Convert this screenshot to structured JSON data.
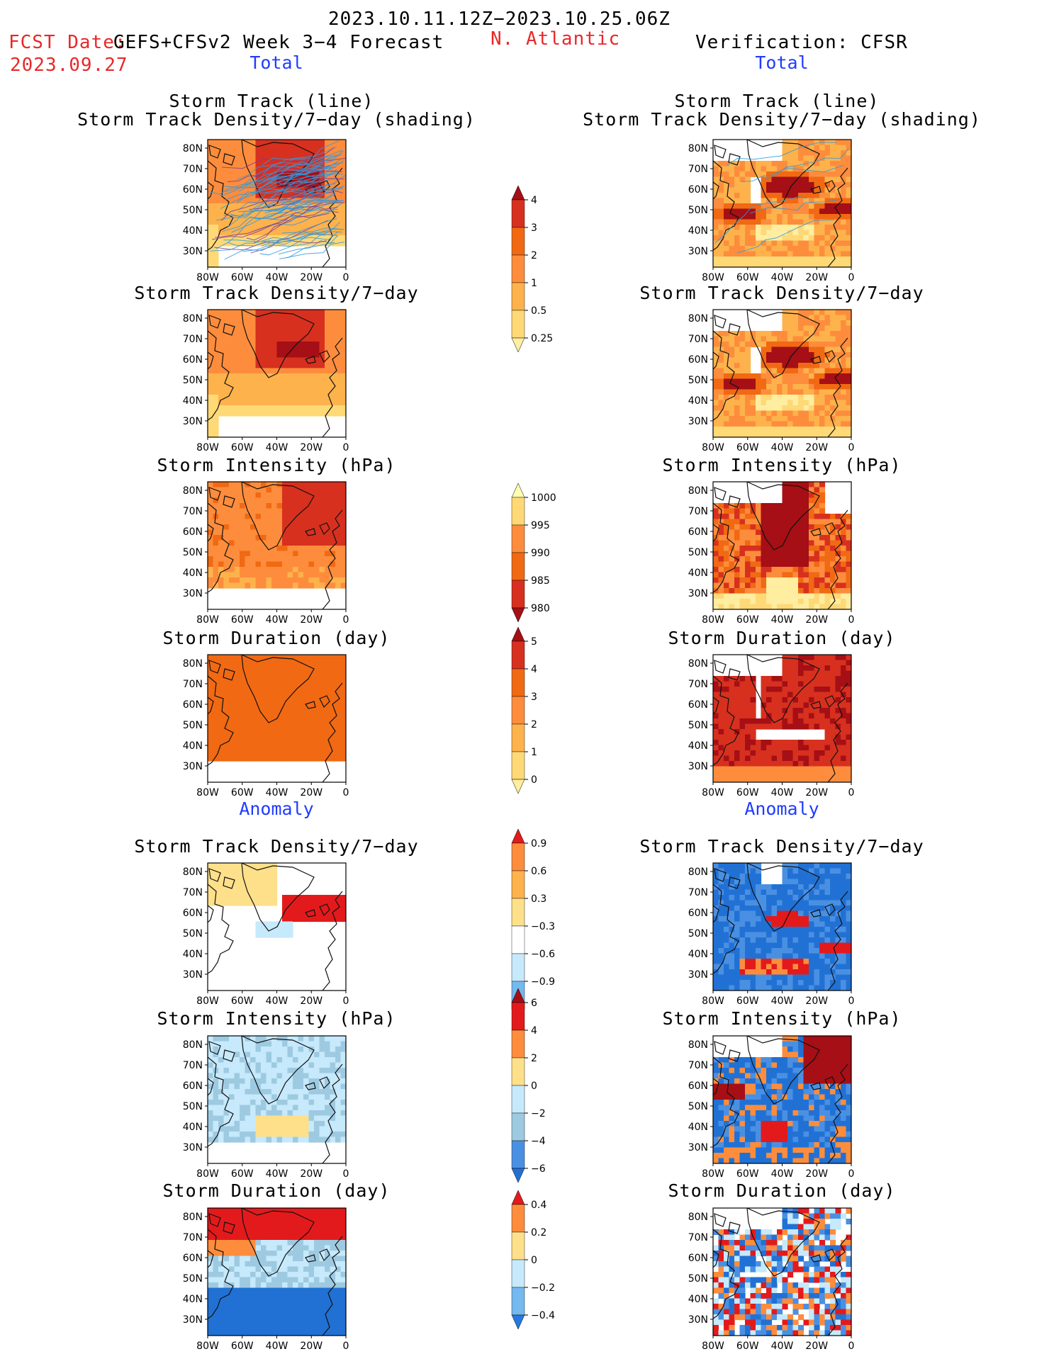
{
  "header": {
    "period": "2023.10.11.12Z−2023.10.25.06Z",
    "fcst_label": "FCST Date:",
    "fcst_date": "2023.09.27",
    "model": "GEFS+CFSv2 Week 3−4 Forecast",
    "region": "N. Atlantic",
    "verification": "Verification: CFSR"
  },
  "sections": {
    "total": "Total",
    "anomaly": "Anomaly"
  },
  "panel_titles": {
    "track_line": "Storm Track (line)",
    "track_shading": "Storm Track Density/7−day (shading)",
    "density": "Storm Track Density/7−day",
    "intensity": "Storm Intensity (hPa)",
    "duration": "Storm Duration (day)"
  },
  "axes": {
    "lat_ticks": [
      "80N",
      "70N",
      "60N",
      "50N",
      "40N",
      "30N"
    ],
    "lon_ticks": [
      "80W",
      "60W",
      "40W",
      "20W",
      "0"
    ]
  },
  "colorbars": [
    {
      "id": "density_total",
      "labels": [
        "4",
        "3",
        "2",
        "1",
        "0.5",
        "0.25"
      ],
      "colors": [
        "#a50f15",
        "#d7301f",
        "#f16913",
        "#fd8d3c",
        "#feb24c",
        "#fed976",
        "#ffeda0"
      ]
    },
    {
      "id": "intensity_total",
      "labels": [
        "1000",
        "995",
        "990",
        "985",
        "980"
      ],
      "colors": [
        "#ffffb2",
        "#fed976",
        "#fd8d3c",
        "#f16913",
        "#d7301f",
        "#a50f15"
      ]
    },
    {
      "id": "duration_total",
      "labels": [
        "5",
        "4",
        "3",
        "2",
        "1",
        "0"
      ],
      "colors": [
        "#a50f15",
        "#d7301f",
        "#f16913",
        "#fd8d3c",
        "#feb24c",
        "#fed976",
        "#ffeda0"
      ]
    },
    {
      "id": "density_anom",
      "labels": [
        "0.9",
        "0.6",
        "0.3",
        "−0.3",
        "−0.6",
        "−0.9"
      ],
      "colors": [
        "#e31a1c",
        "#fd8d3c",
        "#feb24c",
        "#fee08b",
        "#ffffff",
        "#c6e9fb",
        "#74b9f0",
        "#2878e0"
      ]
    },
    {
      "id": "intensity_anom",
      "labels": [
        "6",
        "4",
        "2",
        "0",
        "−2",
        "−4",
        "−6"
      ],
      "colors": [
        "#a50f15",
        "#e31a1c",
        "#fd8d3c",
        "#fee08b",
        "#c6e9fb",
        "#9ecae1",
        "#4a90e2",
        "#2171d5"
      ]
    },
    {
      "id": "duration_anom",
      "labels": [
        "0.4",
        "0.2",
        "0",
        "−0.2",
        "−0.4"
      ],
      "colors": [
        "#e31a1c",
        "#fd8d3c",
        "#fee08b",
        "#c6e9fb",
        "#74b9f0",
        "#2878e0"
      ]
    }
  ]
}
